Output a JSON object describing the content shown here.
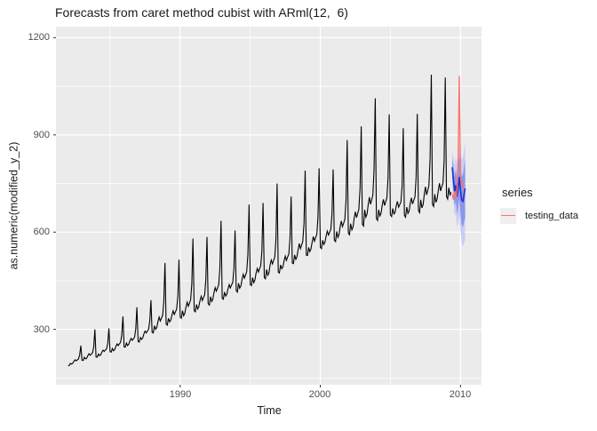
{
  "chart_data": {
    "type": "line",
    "title": "Forecasts from caret method cubist with ARml(12,  6)",
    "xlabel": "Time",
    "ylabel": "as.numeric(modified_y_2)",
    "legend": {
      "title": "series",
      "entries": [
        {
          "label": "testing_data",
          "color": "#f8766d"
        }
      ]
    },
    "legend_position": "right",
    "grid": "on",
    "xlim": [
      1981.14,
      2011.5
    ],
    "ylim": [
      129,
      1234
    ],
    "x_ticks": [
      1990,
      2000,
      2010
    ],
    "x_tick_labels": [
      "1990",
      "2000",
      "2010"
    ],
    "x_minor": [
      1985,
      1995,
      2005
    ],
    "y_ticks": [
      1200,
      900,
      600,
      300
    ],
    "y_tick_labels": [
      "1200",
      "900",
      "600",
      "300"
    ],
    "y_minor": [
      150,
      450,
      750,
      1050
    ],
    "colors": {
      "panel": "#ebebeb",
      "grid": "#ffffff",
      "history": "#000000",
      "forecast": "#2331cb",
      "testing": "#f8766d",
      "band80": "#8c96e9",
      "band95": "#c9cef3",
      "tick": "#333333"
    },
    "series": [
      {
        "name": "history",
        "frequency": 12,
        "start": 1982.0,
        "values": [
          188,
          188,
          195,
          193,
          195,
          201,
          206,
          203,
          206,
          209,
          222,
          250,
          205,
          204,
          214,
          209,
          211,
          219,
          225,
          220,
          224,
          228,
          246,
          300,
          215,
          214,
          224,
          219,
          222,
          230,
          236,
          232,
          236,
          240,
          258,
          303,
          231,
          230,
          241,
          234,
          238,
          248,
          255,
          250,
          255,
          260,
          281,
          340,
          246,
          245,
          258,
          250,
          254,
          265,
          272,
          266,
          271,
          276,
          301,
          368,
          262,
          261,
          275,
          269,
          274,
          286,
          295,
          289,
          295,
          301,
          327,
          390,
          291,
          289,
          311,
          300,
          306,
          324,
          338,
          326,
          335,
          344,
          386,
          505,
          316,
          313,
          334,
          323,
          329,
          345,
          357,
          346,
          354,
          362,
          402,
          515,
          338,
          334,
          358,
          342,
          349,
          370,
          384,
          371,
          381,
          391,
          440,
          580,
          357,
          354,
          377,
          363,
          370,
          388,
          402,
          389,
          398,
          407,
          453,
          585,
          379,
          375,
          401,
          386,
          393,
          414,
          429,
          418,
          428,
          438,
          488,
          635,
          396,
          393,
          415,
          403,
          409,
          426,
          438,
          428,
          437,
          445,
          487,
          605,
          419,
          415,
          442,
          427,
          434,
          455,
          470,
          458,
          468,
          478,
          530,
          685,
          438,
          435,
          460,
          444,
          452,
          473,
          488,
          477,
          487,
          497,
          542,
          690,
          460,
          456,
          485,
          467,
          474,
          498,
          514,
          502,
          513,
          523,
          578,
          750,
          477,
          474,
          499,
          487,
          493,
          512,
          526,
          513,
          523,
          532,
          580,
          710,
          505,
          503,
          530,
          516,
          524,
          547,
          565,
          549,
          560,
          571,
          627,
          790,
          529,
          528,
          553,
          540,
          548,
          570,
          586,
          572,
          583,
          593,
          645,
          797,
          553,
          549,
          575,
          562,
          569,
          588,
          603,
          591,
          600,
          609,
          656,
          793,
          576,
          571,
          602,
          584,
          592,
          617,
          634,
          617,
          628,
          640,
          700,
          884,
          597,
          592,
          626,
          607,
          616,
          643,
          663,
          645,
          658,
          670,
          735,
          926,
          625,
          619,
          669,
          646,
          656,
          686,
          708,
          686,
          700,
          714,
          790,
          1013,
          642,
          636,
          669,
          650,
          658,
          683,
          701,
          682,
          694,
          706,
          768,
          963,
          654,
          648,
          673,
          656,
          661,
          681,
          695,
          677,
          685,
          693,
          742,
          921,
          652,
          646,
          677,
          658,
          665,
          689,
          706,
          687,
          698,
          709,
          769,
          965,
          667,
          660,
          700,
          675,
          685,
          717,
          740,
          715,
          729,
          744,
          825,
          1086,
          686,
          679,
          717,
          692,
          702,
          729,
          751,
          727,
          741,
          750,
          820,
          1077,
          710,
          702,
          737,
          715,
          723
        ]
      },
      {
        "name": "forecast_mean",
        "frequency": 12,
        "start": 2009.4167,
        "values": [
          800,
          760,
          725,
          745,
          710,
          735,
          770,
          730,
          700,
          695,
          715,
          735
        ]
      },
      {
        "name": "testing_data",
        "frequency": 12,
        "start": 2009.4167,
        "values": [
          718,
          700,
          726,
          705,
          730,
          815,
          1082,
          790,
          745,
          738,
          752
        ]
      }
    ],
    "intervals": {
      "start": 2009.4167,
      "level95": {
        "lo": [
          745,
          695,
          650,
          660,
          615,
          630,
          655,
          605,
          570,
          555,
          565,
          575
        ],
        "hi": [
          850,
          830,
          805,
          835,
          810,
          845,
          866,
          845,
          825,
          830,
          855,
          880
        ]
      },
      "level80": {
        "lo": [
          770,
          720,
          680,
          695,
          655,
          675,
          705,
          660,
          625,
          615,
          630,
          645
        ],
        "hi": [
          830,
          800,
          770,
          795,
          765,
          795,
          835,
          800,
          775,
          775,
          800,
          825
        ]
      }
    }
  }
}
